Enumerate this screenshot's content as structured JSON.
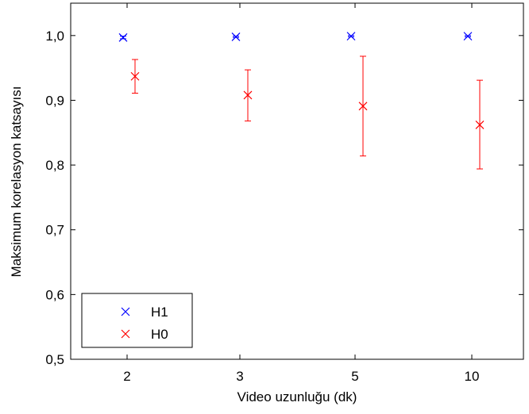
{
  "chart_data": {
    "type": "scatter",
    "title": "",
    "xlabel": "Video uzunluğu (dk)",
    "ylabel": "Maksimum korelasyon katsayısı",
    "categories": [
      "2",
      "3",
      "5",
      "10"
    ],
    "ylim": [
      0.5,
      1.05
    ],
    "yticks": [
      "0,5",
      "0,6",
      "0,7",
      "0,8",
      "0,9",
      "1,0"
    ],
    "ytick_values": [
      0.5,
      0.6,
      0.7,
      0.8,
      0.9,
      1.0
    ],
    "grid": false,
    "legend_position": "bottom-left",
    "series": [
      {
        "name": "H1",
        "color": "#0000ff",
        "marker": "x",
        "values": [
          0.997,
          0.998,
          0.999,
          0.999
        ],
        "error_low": [
          0.995,
          0.997,
          0.998,
          0.998
        ],
        "error_high": [
          0.999,
          0.999,
          1.0,
          1.0
        ]
      },
      {
        "name": "H0",
        "color": "#ff0000",
        "marker": "x",
        "values": [
          0.937,
          0.908,
          0.891,
          0.862
        ],
        "error_low": [
          0.911,
          0.868,
          0.814,
          0.794
        ],
        "error_high": [
          0.963,
          0.947,
          0.968,
          0.931
        ]
      }
    ]
  }
}
